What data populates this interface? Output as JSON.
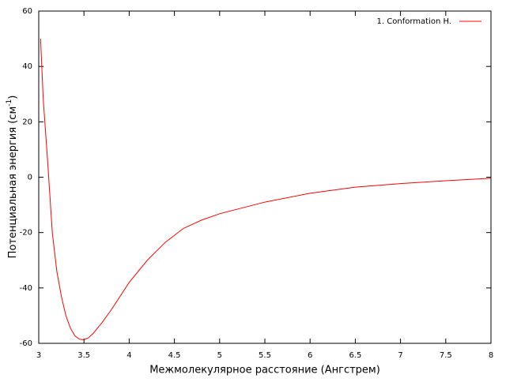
{
  "chart_data": {
    "type": "line",
    "xlabel": "Межмолекулярное расстояние (Ангстрем)",
    "ylabel": {
      "text": "Потенциальная энергия (см",
      "sup": "-1",
      "end": ")"
    },
    "x": [
      3.02,
      3.05,
      3.1,
      3.15,
      3.2,
      3.25,
      3.3,
      3.35,
      3.4,
      3.45,
      3.5,
      3.55,
      3.6,
      3.7,
      3.8,
      3.9,
      4.0,
      4.2,
      4.4,
      4.6,
      4.8,
      5.0,
      5.5,
      6.0,
      6.5,
      7.0,
      7.5,
      8.0
    ],
    "series": [
      {
        "name": "1. Conformation H.",
        "color": "#ff0000",
        "values": [
          50,
          28,
          5,
          -20,
          -34,
          -43,
          -50,
          -54.5,
          -57.3,
          -58.5,
          -58.7,
          -58,
          -56.5,
          -52.5,
          -48,
          -43,
          -38,
          -30,
          -23.5,
          -18.5,
          -15.5,
          -13.2,
          -9,
          -5.8,
          -3.6,
          -2.3,
          -1.3,
          -0.4
        ]
      }
    ],
    "xlim": [
      3,
      8
    ],
    "xticks": [
      3,
      3.5,
      4,
      4.5,
      5,
      5.5,
      6,
      6.5,
      7,
      7.5,
      8
    ],
    "ylim": [
      -60,
      60
    ],
    "yticks": [
      -60,
      -40,
      -20,
      0,
      20,
      40,
      60
    ],
    "legend": "top-right",
    "grid": false
  }
}
